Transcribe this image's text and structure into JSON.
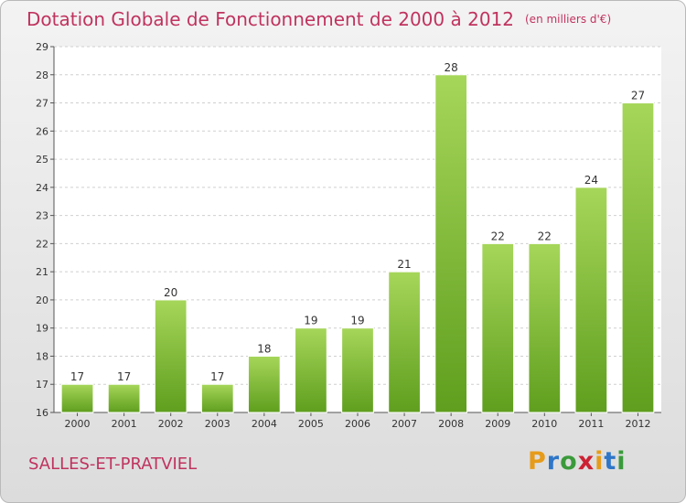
{
  "title": "Dotation Globale de Fonctionnement de 2000 à 2012",
  "subtitle": "(en milliers d'€)",
  "commune": "SALLES-ET-PRATVIEL",
  "logo": {
    "letters": [
      "P",
      "r",
      "o",
      "x",
      "i",
      "t",
      "i"
    ],
    "colors": [
      "#e69c1a",
      "#2e76c8",
      "#3a9a3a",
      "#cc2233",
      "#e69c1a",
      "#2e76c8",
      "#3a9a3a"
    ]
  },
  "chart_data": {
    "type": "bar",
    "title": "Dotation Globale de Fonctionnement de 2000 à 2012",
    "ylabel": "(en milliers d'€)",
    "xlabel": "",
    "categories": [
      "2000",
      "2001",
      "2002",
      "2003",
      "2004",
      "2005",
      "2006",
      "2007",
      "2008",
      "2009",
      "2010",
      "2011",
      "2012"
    ],
    "values": [
      17,
      17,
      20,
      17,
      18,
      19,
      19,
      21,
      28,
      22,
      22,
      24,
      27
    ],
    "ylim": [
      16,
      29
    ],
    "yticks": [
      16,
      17,
      18,
      19,
      20,
      21,
      22,
      23,
      24,
      25,
      26,
      27,
      28,
      29
    ],
    "grid": true,
    "bar_color_top": "#a6d65a",
    "bar_color_bottom": "#5f9e1e"
  }
}
